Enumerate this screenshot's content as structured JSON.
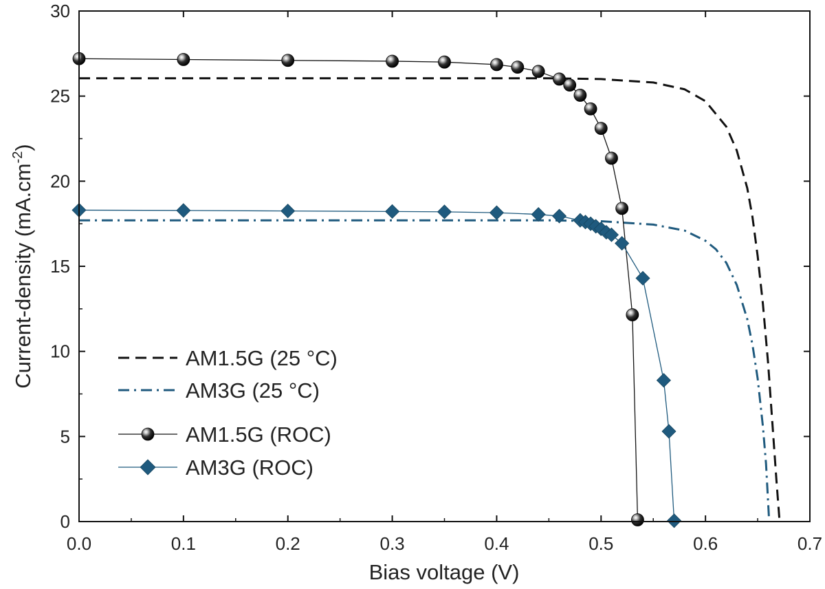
{
  "chart_data": {
    "type": "line",
    "xlabel": "Bias voltage (V)",
    "ylabel_main": "Current-density (mA.cm",
    "ylabel_sup": "-2",
    "ylabel_close": ")",
    "xlim": [
      0,
      0.7
    ],
    "ylim": [
      0,
      30
    ],
    "xticks": [
      0.0,
      0.1,
      0.2,
      0.3,
      0.4,
      0.5,
      0.6,
      0.7
    ],
    "xtick_labels": [
      "0.0",
      "0.1",
      "0.2",
      "0.3",
      "0.4",
      "0.5",
      "0.6",
      "0.7"
    ],
    "yticks": [
      0,
      5,
      10,
      15,
      20,
      25,
      30
    ],
    "ytick_labels": [
      "0",
      "5",
      "10",
      "15",
      "20",
      "25",
      "30"
    ],
    "grid": false,
    "legend_position": "bottom-left",
    "colors": {
      "black": "#111111",
      "blue": "#1f5a7e"
    },
    "series": [
      {
        "name": "AM1.5G (25 °C)",
        "style": "dashed",
        "color": "#111111",
        "marker": "none",
        "x": [
          0.0,
          0.05,
          0.1,
          0.15,
          0.2,
          0.25,
          0.3,
          0.35,
          0.4,
          0.45,
          0.5,
          0.55,
          0.58,
          0.6,
          0.62,
          0.63,
          0.64,
          0.645,
          0.65,
          0.655,
          0.66,
          0.665,
          0.668,
          0.671
        ],
        "y": [
          26.05,
          26.05,
          26.05,
          26.05,
          26.05,
          26.05,
          26.05,
          26.05,
          26.05,
          26.05,
          26.0,
          25.8,
          25.4,
          24.7,
          23.2,
          21.8,
          19.6,
          17.9,
          15.6,
          12.8,
          9.3,
          5.0,
          2.4,
          0.0
        ]
      },
      {
        "name": "AM3G (25 °C)",
        "style": "dashdot",
        "color": "#1f5a7e",
        "marker": "none",
        "x": [
          0.0,
          0.05,
          0.1,
          0.15,
          0.2,
          0.25,
          0.3,
          0.35,
          0.4,
          0.45,
          0.5,
          0.55,
          0.58,
          0.6,
          0.61,
          0.62,
          0.63,
          0.64,
          0.645,
          0.65,
          0.655,
          0.658,
          0.661
        ],
        "y": [
          17.7,
          17.7,
          17.7,
          17.7,
          17.7,
          17.7,
          17.7,
          17.7,
          17.7,
          17.7,
          17.65,
          17.45,
          17.1,
          16.5,
          16.0,
          15.2,
          13.9,
          11.9,
          10.4,
          8.4,
          5.6,
          3.4,
          0.0
        ]
      },
      {
        "name": "AM1.5G (ROC)",
        "style": "solid",
        "color": "#111111",
        "marker": "sphere",
        "x": [
          0.0,
          0.1,
          0.2,
          0.3,
          0.35,
          0.4,
          0.42,
          0.44,
          0.46,
          0.47,
          0.48,
          0.49,
          0.5,
          0.51,
          0.52,
          0.53,
          0.535
        ],
        "y": [
          27.2,
          27.15,
          27.1,
          27.05,
          27.0,
          26.85,
          26.7,
          26.45,
          26.0,
          25.65,
          25.05,
          24.25,
          23.1,
          21.35,
          18.4,
          12.15,
          0.1
        ]
      },
      {
        "name": "AM3G (ROC)",
        "style": "solid",
        "color": "#1f5a7e",
        "marker": "diamond",
        "x": [
          0.0,
          0.1,
          0.2,
          0.3,
          0.35,
          0.4,
          0.44,
          0.46,
          0.48,
          0.485,
          0.49,
          0.495,
          0.5,
          0.505,
          0.51,
          0.52,
          0.54,
          0.56,
          0.565,
          0.57
        ],
        "y": [
          18.3,
          18.28,
          18.25,
          18.22,
          18.2,
          18.15,
          18.05,
          17.95,
          17.7,
          17.6,
          17.5,
          17.35,
          17.2,
          17.0,
          16.85,
          16.35,
          14.3,
          8.3,
          5.3,
          0.05
        ]
      }
    ],
    "legend": [
      {
        "label": "AM1.5G (25 °C)"
      },
      {
        "label": "AM3G (25 °C)"
      },
      {
        "label": "AM1.5G (ROC)"
      },
      {
        "label": "AM3G (ROC)"
      }
    ]
  }
}
